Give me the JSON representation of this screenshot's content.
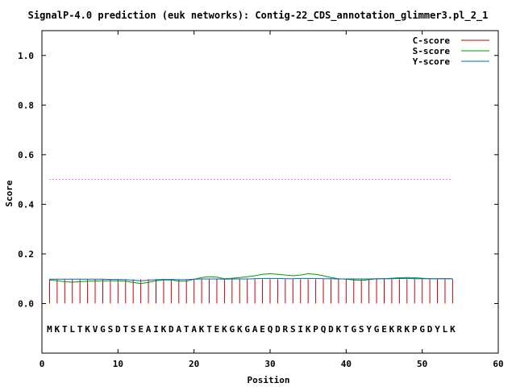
{
  "chart_data": {
    "type": "line",
    "title": "SignalP-4.0 prediction (euk networks): Contig-22_CDS_annotation_glimmer3.pl_2_1",
    "xlabel": "Position",
    "ylabel": "Score",
    "xlim": [
      0,
      60
    ],
    "ylim": [
      -0.2,
      1.1
    ],
    "xticks": [
      0,
      10,
      20,
      30,
      40,
      50,
      60
    ],
    "xtick_labels": [
      "0",
      "10",
      "20",
      "30",
      "40",
      "50",
      "60"
    ],
    "yticks": [
      0.0,
      0.2,
      0.4,
      0.6,
      0.8,
      1.0
    ],
    "ytick_labels": [
      "0.0",
      "0.2",
      "0.4",
      "0.6",
      "0.8",
      "1.0"
    ],
    "grid": false,
    "legend_position": "top-right",
    "cutoff": 0.5,
    "sequence": [
      "M",
      "K",
      "T",
      "L",
      "T",
      "K",
      "V",
      "G",
      "S",
      "D",
      "T",
      "S",
      "E",
      "A",
      "I",
      "K",
      "D",
      "A",
      "T",
      "A",
      "K",
      "T",
      "E",
      "K",
      "G",
      "K",
      "G",
      "A",
      "E",
      "Q",
      "D",
      "R",
      "S",
      "I",
      "K",
      "P",
      "Q",
      "D",
      "K",
      "T",
      "G",
      "S",
      "Y",
      "G",
      "E",
      "K",
      "R",
      "K",
      "P",
      "G",
      "D",
      "Y",
      "L",
      "K"
    ],
    "positions": [
      1,
      2,
      3,
      4,
      5,
      6,
      7,
      8,
      9,
      10,
      11,
      12,
      13,
      14,
      15,
      16,
      17,
      18,
      19,
      20,
      21,
      22,
      23,
      24,
      25,
      26,
      27,
      28,
      29,
      30,
      31,
      32,
      33,
      34,
      35,
      36,
      37,
      38,
      39,
      40,
      41,
      42,
      43,
      44,
      45,
      46,
      47,
      48,
      49,
      50,
      51,
      52,
      53,
      54
    ],
    "series": [
      {
        "name": "C-score",
        "color": "#cc0000",
        "style": "impulses",
        "values": [
          0.098,
          0.098,
          0.098,
          0.098,
          0.098,
          0.098,
          0.098,
          0.098,
          0.098,
          0.098,
          0.098,
          0.098,
          0.098,
          0.098,
          0.098,
          0.098,
          0.098,
          0.098,
          0.098,
          0.098,
          0.098,
          0.098,
          0.098,
          0.098,
          0.098,
          0.098,
          0.098,
          0.098,
          0.098,
          0.098,
          0.098,
          0.098,
          0.098,
          0.098,
          0.098,
          0.098,
          0.098,
          0.098,
          0.098,
          0.098,
          0.098,
          0.098,
          0.098,
          0.098,
          0.098,
          0.098,
          0.098,
          0.098,
          0.098,
          0.098,
          0.098,
          0.098,
          0.098,
          0.098
        ]
      },
      {
        "name": "S-score",
        "color": "#009900",
        "style": "line",
        "values": [
          0.095,
          0.092,
          0.088,
          0.086,
          0.088,
          0.09,
          0.091,
          0.092,
          0.092,
          0.092,
          0.09,
          0.085,
          0.08,
          0.085,
          0.092,
          0.095,
          0.095,
          0.09,
          0.09,
          0.098,
          0.105,
          0.108,
          0.106,
          0.1,
          0.102,
          0.105,
          0.108,
          0.112,
          0.118,
          0.12,
          0.118,
          0.115,
          0.112,
          0.115,
          0.12,
          0.118,
          0.112,
          0.105,
          0.1,
          0.098,
          0.095,
          0.093,
          0.096,
          0.1,
          0.1,
          0.102,
          0.104,
          0.105,
          0.104,
          0.102,
          0.1,
          0.1,
          0.1,
          0.1
        ]
      },
      {
        "name": "Y-score",
        "color": "#0066cc",
        "style": "line",
        "values": [
          0.098,
          0.098,
          0.098,
          0.098,
          0.098,
          0.098,
          0.098,
          0.098,
          0.097,
          0.097,
          0.096,
          0.094,
          0.092,
          0.094,
          0.096,
          0.097,
          0.097,
          0.096,
          0.096,
          0.098,
          0.099,
          0.099,
          0.099,
          0.098,
          0.099,
          0.099,
          0.099,
          0.1,
          0.101,
          0.101,
          0.101,
          0.1,
          0.1,
          0.101,
          0.101,
          0.101,
          0.1,
          0.1,
          0.099,
          0.099,
          0.099,
          0.099,
          0.099,
          0.1,
          0.1,
          0.1,
          0.101,
          0.101,
          0.1,
          0.1,
          0.1,
          0.1,
          0.1,
          0.1
        ]
      }
    ]
  }
}
